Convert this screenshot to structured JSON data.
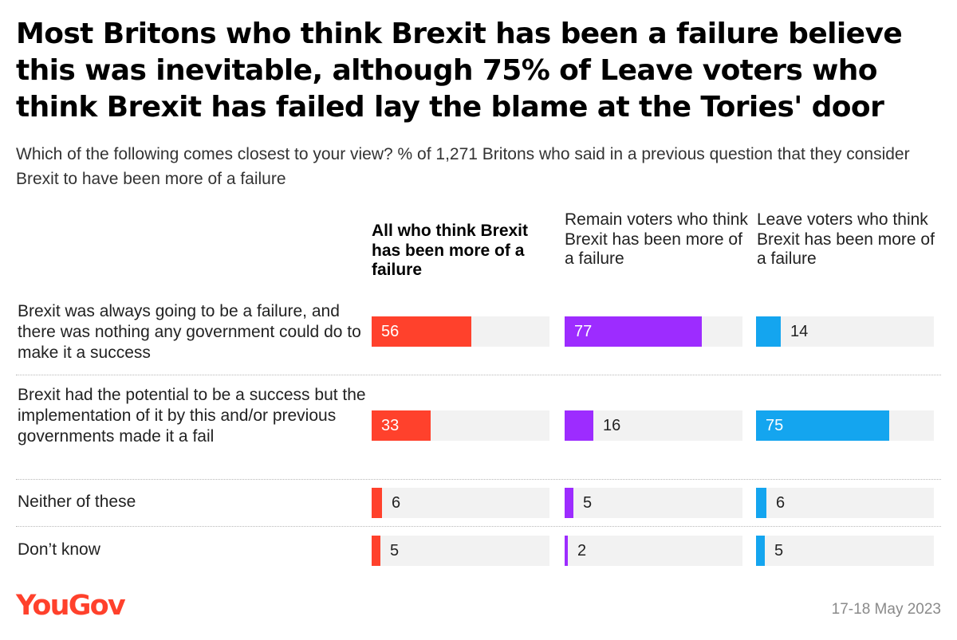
{
  "title": "Most Britons who think Brexit has been a failure believe this was inevitable, although 75% of Leave voters who think Brexit has failed lay the blame at the Tories' door",
  "subtitle": "Which of the following comes closest to your view? % of 1,271 Britons who said in a previous question that they consider Brexit to have been more of a failure",
  "brand": "YouGov",
  "date": "17-18 May 2023",
  "colors": {
    "all": "#ff412c",
    "remain": "#9d2cff",
    "leave": "#14a5ef",
    "track": "#f2f2f2",
    "brand": "#ff412c"
  },
  "chart_data": {
    "type": "bar",
    "orientation": "horizontal",
    "title": "Most Britons who think Brexit has been a failure believe this was inevitable, although 75% of Leave voters who think Brexit has failed lay the blame at the Tories' door",
    "subtitle": "Which of the following comes closest to your view? % of 1,271 Britons who said in a previous question that they consider Brexit to have been more of a failure",
    "xlim": [
      0,
      100
    ],
    "grid": false,
    "categories": [
      "Brexit was always going to be a failure, and there was nothing any government could do to make it a success",
      "Brexit had the potential to be a success but the implementation of it by this and/or previous governments made it a fail",
      "Neither of these",
      "Don’t know"
    ],
    "series": [
      {
        "name": "All who think Brexit has been more of a failure",
        "values": [
          56,
          33,
          6,
          5
        ]
      },
      {
        "name": "Remain voters who think Brexit has been more of a failure",
        "values": [
          77,
          16,
          5,
          2
        ]
      },
      {
        "name": "Leave voters who think Brexit has been more of a failure",
        "values": [
          14,
          75,
          6,
          5
        ]
      }
    ]
  }
}
